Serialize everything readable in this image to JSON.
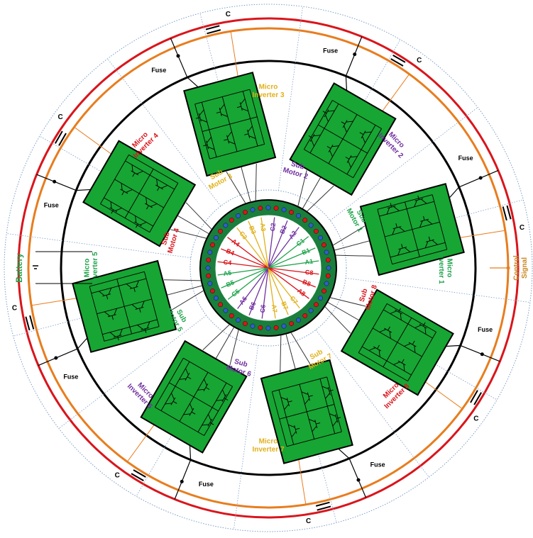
{
  "inverters": [
    {
      "line1": "Micro",
      "line2": "Inverter 1"
    },
    {
      "line1": "Micro",
      "line2": "Inverter 2"
    },
    {
      "line1": "Micro",
      "line2": "Inverter 3"
    },
    {
      "line1": "Micro",
      "line2": "Inverter 4"
    },
    {
      "line1": "Micro",
      "line2": "Inverter 5"
    },
    {
      "line1": "Micro",
      "line2": "Inverter 6"
    },
    {
      "line1": "Micro",
      "line2": "Inverter 7"
    },
    {
      "line1": "Micro",
      "line2": "Inverter 8"
    }
  ],
  "sub_motors": [
    {
      "line1": "Sub",
      "line2": "Motor 1"
    },
    {
      "line1": "Sub",
      "line2": "Motor 2"
    },
    {
      "line1": "Sub",
      "line2": "Motor 3"
    },
    {
      "line1": "Sub",
      "line2": "Motor 4"
    },
    {
      "line1": "Sub",
      "line2": "Motor 5"
    },
    {
      "line1": "Sub",
      "line2": "Motor 6"
    },
    {
      "line1": "Sub",
      "line2": "Motor 7"
    },
    {
      "line1": "Sub",
      "line2": "Motor 8"
    }
  ],
  "fuses": [
    "Fuse",
    "Fuse",
    "Fuse",
    "Fuse",
    "Fuse",
    "Fuse",
    "Fuse",
    "Fuse"
  ],
  "capacitors": [
    "C",
    "C",
    "C",
    "C",
    "C",
    "C",
    "C",
    "C"
  ],
  "windings": [
    [
      "A1",
      "B1",
      "C1"
    ],
    [
      "A2",
      "B2",
      "C2"
    ],
    [
      "A3",
      "B3",
      "C3"
    ],
    [
      "A4",
      "B4",
      "C4"
    ],
    [
      "A5",
      "B5",
      "C5"
    ],
    [
      "A6",
      "B6",
      "C6"
    ],
    [
      "A7",
      "B7",
      "C7"
    ],
    [
      "A8",
      "B8",
      "C8"
    ]
  ],
  "battery": "Battery",
  "control_signal": {
    "line1": "Control",
    "line2": "Signal"
  }
}
